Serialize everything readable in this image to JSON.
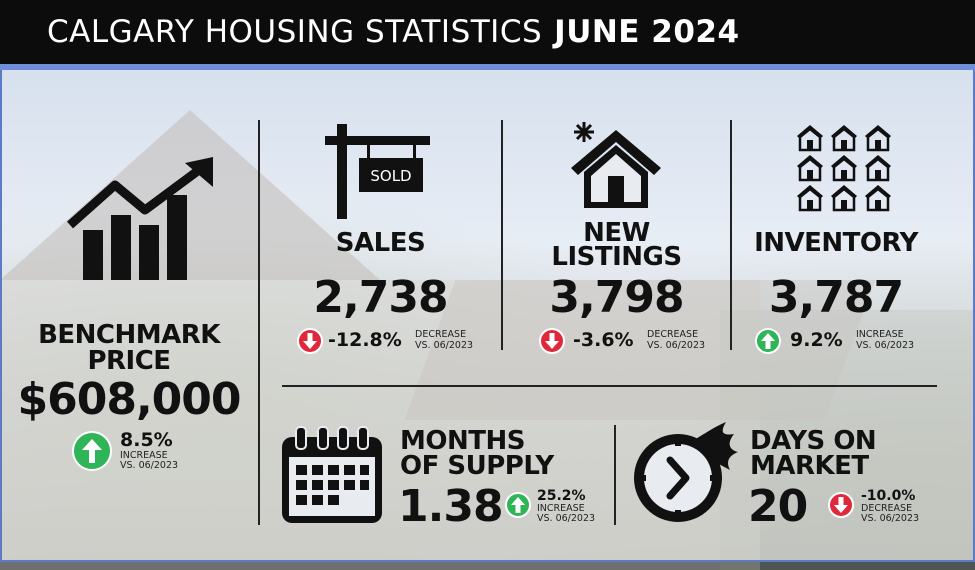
{
  "header": {
    "title_main": "CALGARY HOUSING STATISTICS",
    "title_date": "JUNE 2024"
  },
  "benchmark": {
    "label_line1": "BENCHMARK",
    "label_line2": "PRICE",
    "value": "$608,000",
    "change": "8.5%",
    "direction_line": "INCREASE",
    "compare_line": "VS. 06/2023",
    "trend": "up",
    "icon": "growth-chart-icon"
  },
  "sales": {
    "label": "SALES",
    "value": "2,738",
    "change": "-12.8%",
    "direction_line": "DECREASE",
    "compare_line": "VS. 06/2023",
    "trend": "down",
    "icon": "sold-sign-icon",
    "sign_text": "SOLD"
  },
  "new_listings": {
    "label_line1": "NEW",
    "label_line2": "LISTINGS",
    "value": "3,798",
    "change": "-3.6%",
    "direction_line": "DECREASE",
    "compare_line": "VS. 06/2023",
    "trend": "down",
    "icon": "new-house-icon"
  },
  "inventory": {
    "label": "INVENTORY",
    "value": "3,787",
    "change": "9.2%",
    "direction_line": "INCREASE",
    "compare_line": "VS. 06/2023",
    "trend": "up",
    "icon": "houses-grid-icon"
  },
  "months_of_supply": {
    "label_line1": "MONTHS",
    "label_line2": "OF SUPPLY",
    "value": "1.38",
    "change": "25.2%",
    "direction_line": "INCREASE",
    "compare_line": "VS. 06/2023",
    "trend": "up",
    "icon": "calendar-icon"
  },
  "days_on_market": {
    "label_line1": "DAYS ON",
    "label_line2": "MARKET",
    "value": "20",
    "change": "-10.0%",
    "direction_line": "DECREASE",
    "compare_line": "VS. 06/2023",
    "trend": "down",
    "icon": "fast-clock-icon"
  },
  "colors": {
    "increase": "#2fb457",
    "decrease": "#e0283c",
    "title_bar": "#0c0c0c",
    "accent": "#6e8fd8"
  }
}
